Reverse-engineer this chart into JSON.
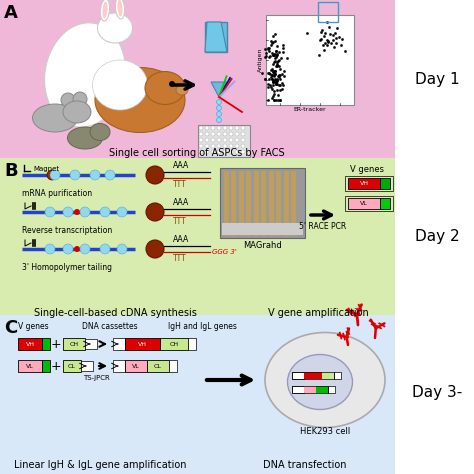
{
  "panel_A_bg": "#f0b8d8",
  "panel_B_bg": "#d8ecb0",
  "panel_C_bg": "#d8e8f8",
  "panel_A_label": "A",
  "panel_B_label": "B",
  "panel_C_label": "C",
  "panel_A_caption": "Single cell sorting of ASPCs by FACS",
  "panel_B_caption_left": "Single-cell-based cDNA synthesis",
  "panel_B_caption_right": "V gene amplification",
  "panel_C_caption_left": "Linear IgH & IgL gene amplification",
  "panel_C_caption_right": "DNA transfection",
  "day1_label": "Day 1",
  "day2_label": "Day 2",
  "day3_label": "Day 3-",
  "facs_xlabel": "ER-tracker",
  "facs_ylabel": "Antigen",
  "magnet_label": "Magnet",
  "mrna_label": "mRNA purification",
  "rev_trans_label": "Reverse transcriptation",
  "homo_label": "3' Homopolymer tailing",
  "magrahd_label": "MAGrahd",
  "race_label": "5' RACE PCR",
  "vgenes_label": "V genes",
  "vgenes_C_label": "V genes",
  "dna_cassettes_label": "DNA cassettes",
  "igh_igl_label": "IgH and IgL genes",
  "tsjpcr_label": "TS-jPCR",
  "hek_label": "HEK293 cell",
  "aaa_label": "AAA",
  "ggg_label": "GGG 3'",
  "ttt_label": "TTT"
}
